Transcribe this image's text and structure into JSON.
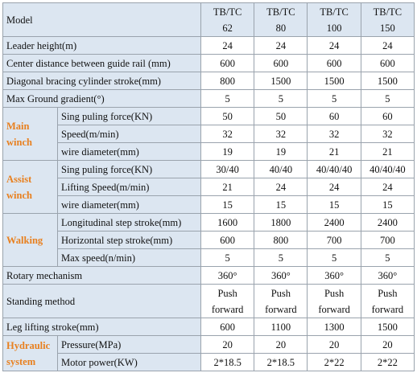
{
  "table": {
    "header": {
      "label": "Model",
      "models": [
        [
          "TB/TC",
          "62"
        ],
        [
          "TB/TC",
          "80"
        ],
        [
          "TB/TC",
          "100"
        ],
        [
          "TB/TC",
          "150"
        ]
      ]
    },
    "rows": [
      {
        "label": "Leader height(m)",
        "values": [
          24,
          24,
          24,
          24
        ]
      },
      {
        "label": "Center distance between guide rail (mm)",
        "values": [
          600,
          600,
          600,
          600
        ]
      },
      {
        "label": "Diagonal bracing cylinder stroke(mm)",
        "values": [
          800,
          1500,
          1500,
          1500
        ]
      },
      {
        "label": "Max Ground gradient(°)",
        "values": [
          5,
          5,
          5,
          5
        ]
      },
      {
        "group": [
          "Main",
          "winch"
        ],
        "rows": [
          {
            "label": "Sing puling force(KN)",
            "values": [
              50,
              50,
              60,
              60
            ]
          },
          {
            "label": "Speed(m/min)",
            "values": [
              32,
              32,
              32,
              32
            ]
          },
          {
            "label": "wire diameter(mm)",
            "values": [
              19,
              19,
              21,
              21
            ]
          }
        ]
      },
      {
        "group": [
          "Assist",
          "winch"
        ],
        "rows": [
          {
            "label": "Sing puling force(KN)",
            "values": [
              "30/40",
              "40/40",
              "40/40/40",
              "40/40/40"
            ]
          },
          {
            "label": "Lifting Speed(m/min)",
            "values": [
              21,
              24,
              24,
              24
            ]
          },
          {
            "label": "wire diameter(mm)",
            "values": [
              15,
              15,
              15,
              15
            ]
          }
        ]
      },
      {
        "group": [
          "Walking"
        ],
        "rows": [
          {
            "label": "Longitudinal step stroke(mm)",
            "values": [
              1600,
              1800,
              2400,
              2400
            ]
          },
          {
            "label": "Horizontal step stroke(mm)",
            "values": [
              600,
              800,
              700,
              700
            ]
          },
          {
            "label": "Max speed(n/min)",
            "values": [
              5,
              5,
              5,
              5
            ]
          }
        ]
      },
      {
        "label": "Rotary mechanism",
        "values": [
          "360°",
          "360°",
          "360°",
          "360°"
        ]
      },
      {
        "label": "Standing method",
        "values": [
          [
            "Push",
            "forward"
          ],
          [
            "Push",
            "forward"
          ],
          [
            "Push",
            "forward"
          ],
          [
            "Push",
            "forward"
          ]
        ]
      },
      {
        "label": "Leg lifting stroke(mm)",
        "values": [
          600,
          1100,
          1300,
          1500
        ]
      },
      {
        "group": [
          "Hydraulic",
          "system"
        ],
        "rows": [
          {
            "label": "Pressure(MPa)",
            "values": [
              20,
              20,
              20,
              20
            ]
          },
          {
            "label": "Motor power(KW)",
            "values": [
              "2*18.5",
              "2*18.5",
              "2*22",
              "2*22"
            ]
          }
        ]
      }
    ]
  }
}
